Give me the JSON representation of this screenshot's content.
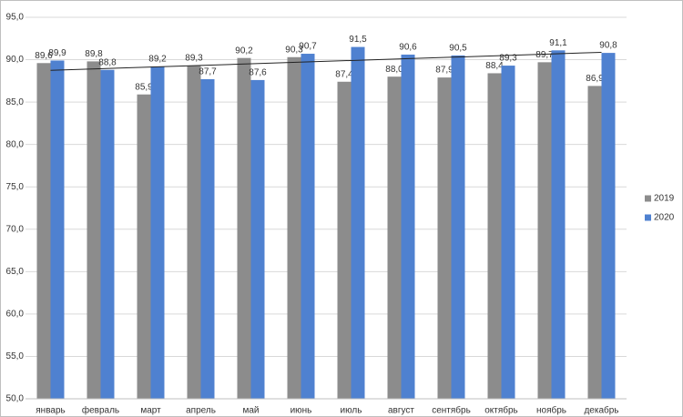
{
  "chart_data": {
    "type": "bar",
    "categories": [
      "январь",
      "февраль",
      "март",
      "апрель",
      "май",
      "июнь",
      "июль",
      "август",
      "сентябрь",
      "октябрь",
      "ноябрь",
      "декабрь"
    ],
    "series": [
      {
        "name": "2019",
        "color": "#8c8c8c",
        "values": [
          89.6,
          89.8,
          85.9,
          89.3,
          90.2,
          90.3,
          87.4,
          88.0,
          87.9,
          88.4,
          89.7,
          86.9
        ],
        "value_labels": [
          "89,6",
          "89,8",
          "85,9",
          "89,3",
          "90,2",
          "90,3",
          "87,4",
          "88,0",
          "87,9",
          "88,4",
          "89,7",
          "86,9"
        ]
      },
      {
        "name": "2020",
        "color": "#4f81d0",
        "values": [
          89.9,
          88.8,
          89.2,
          87.7,
          87.6,
          90.7,
          91.5,
          90.6,
          90.5,
          89.3,
          91.1,
          90.8
        ],
        "value_labels": [
          "89,9",
          "88,8",
          "89,2",
          "87,7",
          "87,6",
          "90,7",
          "91,5",
          "90,6",
          "90,5",
          "89,3",
          "91,1",
          "90,8"
        ]
      }
    ],
    "ylim": [
      50,
      95
    ],
    "yticks": [
      {
        "value": 50,
        "label": "50,0"
      },
      {
        "value": 55,
        "label": "55,0"
      },
      {
        "value": 60,
        "label": "60,0"
      },
      {
        "value": 65,
        "label": "65,0"
      },
      {
        "value": 70,
        "label": "70,0"
      },
      {
        "value": 75,
        "label": "75,0"
      },
      {
        "value": 80,
        "label": "80,0"
      },
      {
        "value": 85,
        "label": "85,0"
      },
      {
        "value": 90,
        "label": "90,0"
      },
      {
        "value": 95,
        "label": "95,0"
      }
    ],
    "grid": true,
    "trendline": true,
    "legend": "right"
  }
}
